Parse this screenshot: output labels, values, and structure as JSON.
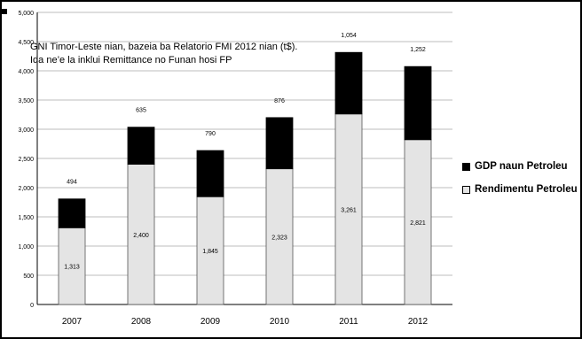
{
  "chart_data": {
    "type": "bar",
    "stacked": true,
    "categories": [
      "2007",
      "2008",
      "2009",
      "2010",
      "2011",
      "2012"
    ],
    "series": [
      {
        "name": "Rendimentu Petroleu",
        "values": [
          1313,
          2400,
          1845,
          2323,
          3261,
          2821
        ],
        "color": "#e4e4e4"
      },
      {
        "name": "GDP naun Petroleu",
        "values": [
          494,
          635,
          790,
          876,
          1054,
          1252
        ],
        "color": "#000000"
      }
    ],
    "value_labels": [
      [
        "1,313",
        "2,400",
        "1,845",
        "2,323",
        "3,261",
        "2,821"
      ],
      [
        "494",
        "635",
        "790",
        "876",
        "1,054",
        "1,252"
      ]
    ],
    "annotation": [
      "GNI Timor-Leste nian, bazeia ba Relatorio FMI 2012 nian (t$).",
      "Ida ne’e la inklui Remittance no Funan hosi FP"
    ],
    "ylim": [
      0,
      5000
    ],
    "yticks": [
      0,
      500,
      1000,
      1500,
      2000,
      2500,
      3000,
      3500,
      4000,
      4500,
      5000
    ],
    "ytick_labels": [
      "0",
      "500",
      "1,000",
      "1,500",
      "2,000",
      "2,500",
      "3,000",
      "3,500",
      "4,000",
      "4,500",
      "5,000"
    ],
    "grid": true,
    "legend_position": "right",
    "legend": [
      "GDP naun Petroleu",
      "Rendimentu Petroleu"
    ]
  }
}
